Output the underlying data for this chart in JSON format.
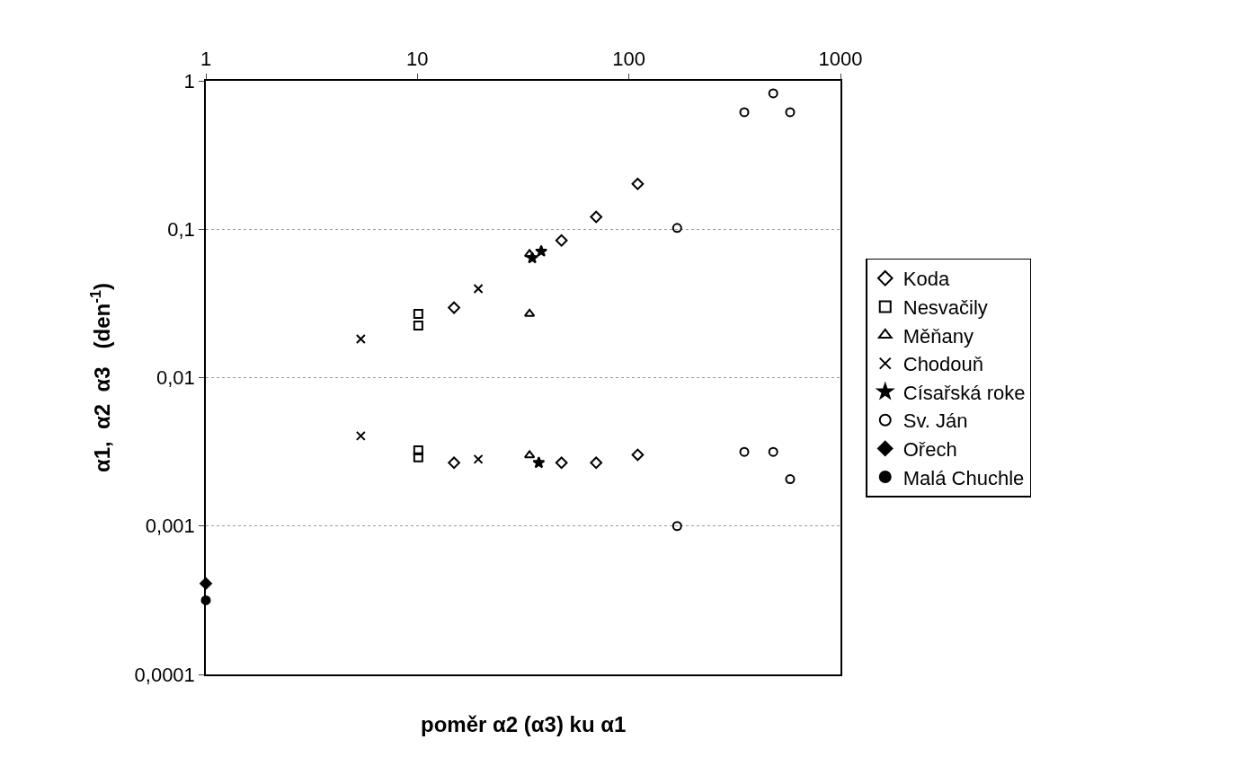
{
  "chart_data": {
    "type": "scatter",
    "xlabel": "poměr α2 (α3) ku α1",
    "ylabel": "α1,  α2  α3   (den$^{-1}$)",
    "log": "xy",
    "xlim": [
      1,
      1000
    ],
    "xticks": [
      1,
      10,
      100,
      1000
    ],
    "ylim": [
      0.0001,
      1
    ],
    "yticks": [
      {
        "value": 0.0001,
        "label": "0,0001"
      },
      {
        "value": 0.001,
        "label": "0,001"
      },
      {
        "value": 0.01,
        "label": "0,01"
      },
      {
        "value": 0.1,
        "label": "0,1"
      },
      {
        "value": 1,
        "label": "1"
      }
    ],
    "grid": "y",
    "legend": "right",
    "series": [
      {
        "name": "Koda",
        "color": "#000000",
        "marker": "diamond",
        "x": [
          14.9,
          48,
          70,
          110,
          14.9,
          48,
          70,
          110
        ],
        "values": [
          0.0296,
          0.084,
          0.121,
          0.202,
          0.00267,
          0.00267,
          0.00267,
          0.00302
        ]
      },
      {
        "name": "Nesvačily",
        "color": "#000000",
        "marker": "square",
        "x": [
          10.1,
          10.1,
          10.1,
          10.1
        ],
        "values": [
          0.0269,
          0.0224,
          0.00324,
          0.0029
        ]
      },
      {
        "name": "Měňany",
        "color": "#000000",
        "marker": "triangle",
        "x": [
          33.9,
          33.9,
          33.9
        ],
        "values": [
          0.068,
          0.0269,
          0.003
        ]
      },
      {
        "name": "Chodouň",
        "color": "#000000",
        "marker": "cross",
        "x": [
          5.4,
          19.4,
          5.4,
          19.4
        ],
        "values": [
          0.0182,
          0.0397,
          0.00405,
          0.00282
        ]
      },
      {
        "name": "Císařská roke",
        "color": "#000000",
        "marker": "star",
        "x": [
          34.9,
          38.5,
          37.5
        ],
        "values": [
          0.064,
          0.071,
          0.00267
        ]
      },
      {
        "name": "Sv. Ján",
        "color": "#000000",
        "marker": "circle",
        "x": [
          351,
          481,
          578,
          169,
          351,
          481,
          578,
          169
        ],
        "values": [
          0.615,
          0.823,
          0.615,
          0.102,
          0.00316,
          0.00316,
          0.00207,
          0.001
        ]
      },
      {
        "name": "Ořech",
        "color": "#000000",
        "marker": "diamond",
        "x": [
          1
        ],
        "values": [
          0.00041
        ]
      },
      {
        "name": "Malá Chuchle",
        "color": "#000000",
        "marker": "circle",
        "x": [
          1
        ],
        "values": [
          0.000316
        ]
      }
    ]
  }
}
